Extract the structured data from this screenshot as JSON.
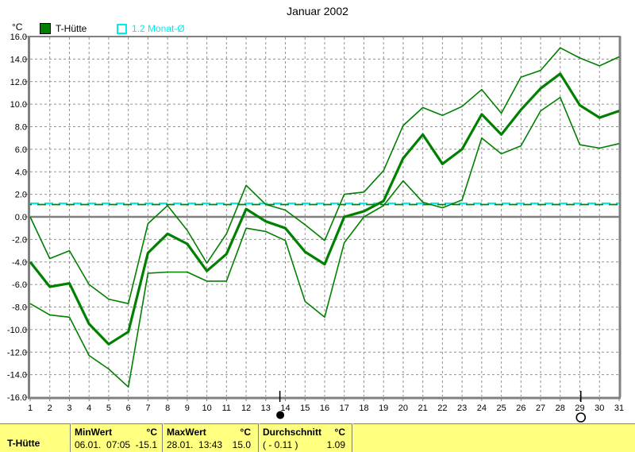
{
  "title": "Januar 2002",
  "y_axis_unit": "°C",
  "legend": {
    "station": {
      "label": "T-Hütte"
    },
    "average": {
      "label": "1.2 Monat-Ø"
    }
  },
  "colors": {
    "series_green": "#008000",
    "average_cyan": "#00eded",
    "grid_gray": "#909090",
    "axis_gray": "#808080",
    "table_yellow": "#ffff80",
    "text_black": "#000000"
  },
  "chart_data": {
    "type": "line",
    "title": "Januar 2002",
    "ylabel": "°C",
    "ylim": [
      -16,
      16
    ],
    "ytick_step": 2,
    "grid": true,
    "y_tick_labels": [
      "16.0",
      "14.0",
      "12.0",
      "10.0",
      "8.0",
      "6.0",
      "4.0",
      "2.0",
      "0.0",
      "-2.0",
      "-4.0",
      "-6.0",
      "-8.0",
      "-10.0",
      "-12.0",
      "-14.0",
      "-16.0"
    ],
    "x": [
      1,
      2,
      3,
      4,
      5,
      6,
      7,
      8,
      9,
      10,
      11,
      12,
      13,
      14,
      15,
      16,
      17,
      18,
      19,
      20,
      21,
      22,
      23,
      24,
      25,
      26,
      27,
      28,
      29,
      30,
      31
    ],
    "series": [
      {
        "name": "T-Hütte Maximum",
        "role": "max",
        "values": [
          0.0,
          -3.7,
          -3.0,
          -6.0,
          -7.3,
          -7.7,
          -0.6,
          1.0,
          -1.2,
          -4.1,
          -1.5,
          2.8,
          1.1,
          0.6,
          -0.7,
          -2.1,
          2.0,
          2.2,
          4.1,
          8.1,
          9.7,
          9.0,
          9.8,
          11.3,
          9.2,
          12.4,
          13.0,
          15.0,
          14.1,
          13.4,
          14.2
        ]
      },
      {
        "name": "T-Hütte Mittelwert",
        "role": "mean",
        "values": [
          -4.0,
          -6.2,
          -5.9,
          -9.5,
          -11.3,
          -10.2,
          -3.2,
          -1.5,
          -2.4,
          -4.8,
          -3.3,
          0.7,
          -0.4,
          -1.0,
          -3.1,
          -4.2,
          0.0,
          0.5,
          1.4,
          5.2,
          7.3,
          4.7,
          6.0,
          9.1,
          7.3,
          9.5,
          11.4,
          12.7,
          9.9,
          8.8,
          9.4
        ]
      },
      {
        "name": "T-Hütte Minimum",
        "role": "min",
        "values": [
          -7.7,
          -8.7,
          -8.9,
          -12.3,
          -13.5,
          -15.1,
          -5.0,
          -4.9,
          -4.9,
          -5.7,
          -5.7,
          -1.0,
          -1.3,
          -2.1,
          -7.5,
          -8.9,
          -2.3,
          0.0,
          1.0,
          3.2,
          1.3,
          0.8,
          1.5,
          7.0,
          5.6,
          6.3,
          9.4,
          10.6,
          6.4,
          6.1,
          6.5
        ]
      }
    ],
    "reference_lines": [
      {
        "name": "1.2 Monat-Ø",
        "value": 1.2,
        "style": "dashed",
        "color_key": "average_cyan"
      },
      {
        "name": "Monats-Durchschnitt",
        "value": 1.09,
        "style": "dashed",
        "color_key": "series_green"
      }
    ],
    "markers": [
      {
        "phase": "new-moon",
        "symbol": "●",
        "day": 13.72
      },
      {
        "phase": "full-moon",
        "symbol": "○",
        "day": 29.05
      }
    ],
    "legend_position": "top-left"
  },
  "table": {
    "row_label": "T-Hütte",
    "columns": [
      {
        "header": "MinWert",
        "unit": "°C",
        "value": "06.01.  07:05",
        "amount": "-15.1"
      },
      {
        "header": "MaxWert",
        "unit": "°C",
        "value": "28.01.  13:43",
        "amount": "15.0"
      },
      {
        "header": "Durchschnitt",
        "unit": "°C",
        "value": "( - 0.11 )",
        "amount": "1.09"
      }
    ]
  }
}
